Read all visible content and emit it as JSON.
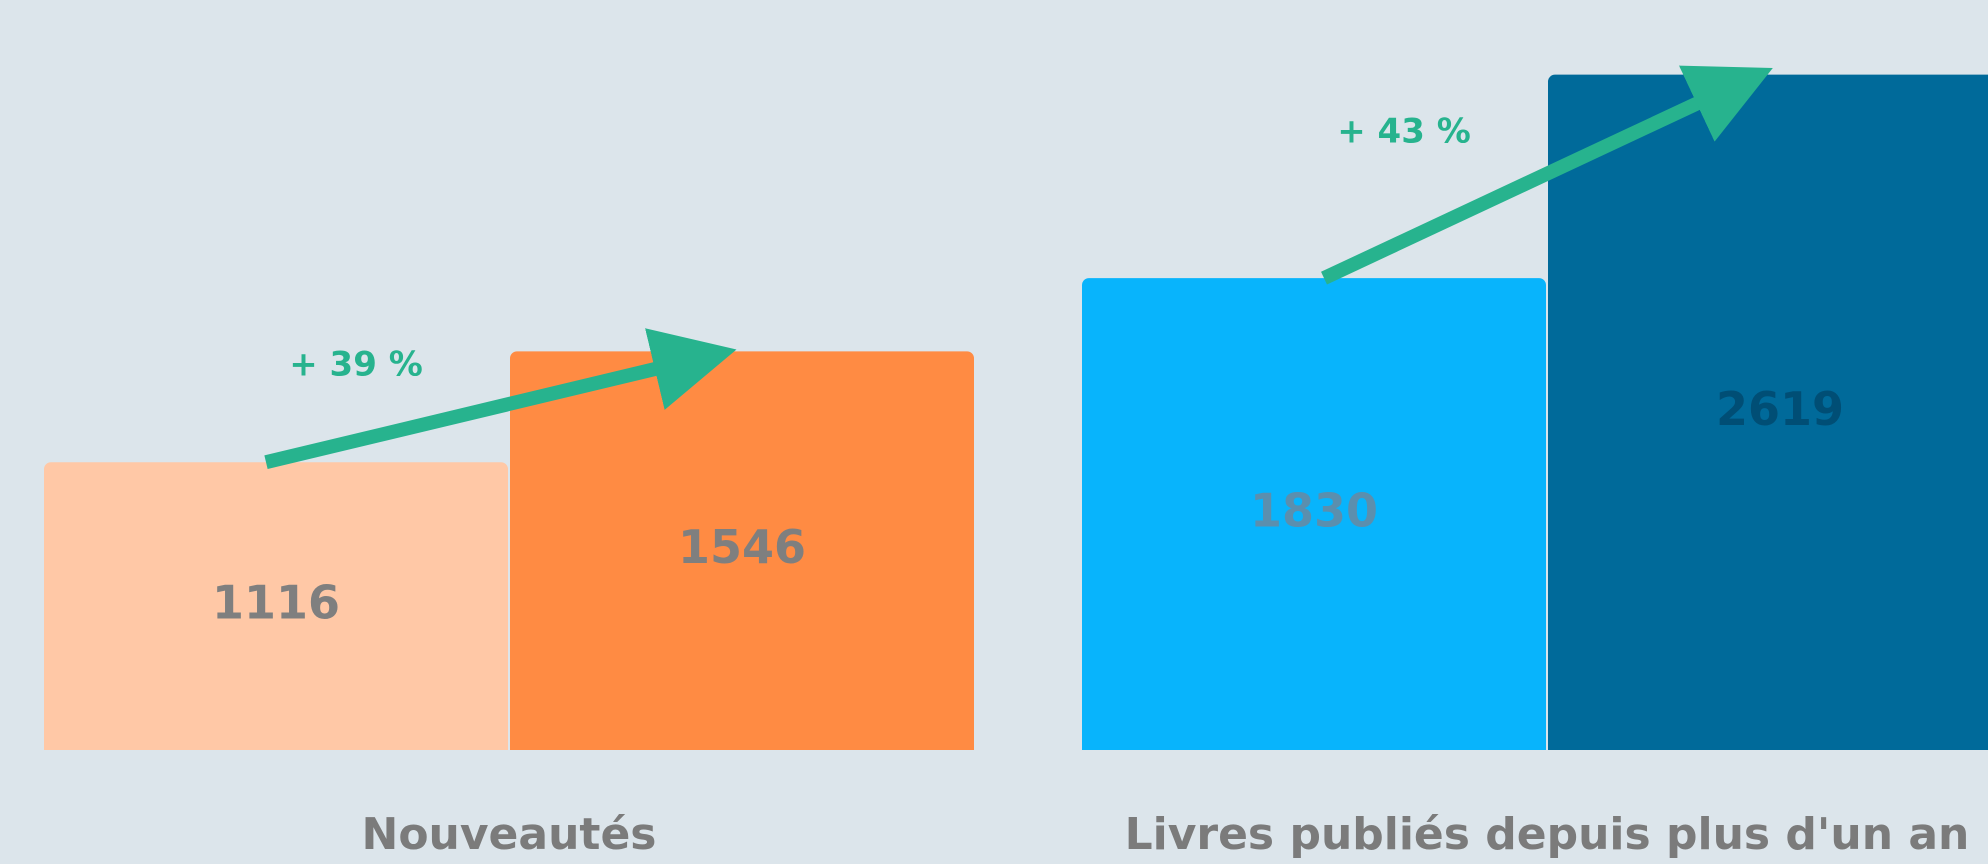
{
  "chart_data": {
    "type": "bar",
    "categories": [
      "Nouveautés",
      "Livres publiés depuis plus d'un an"
    ],
    "groups": [
      {
        "label": "Nouveautés",
        "values": [
          1116,
          1546
        ],
        "value_labels": [
          "1116",
          "1546"
        ],
        "colors": [
          "#ffc8a6",
          "#ff8b43"
        ],
        "value_text_colors": [
          "#7f7f7f",
          "#7f7f7f"
        ],
        "change_label": "+ 39 %"
      },
      {
        "label": "Livres publiés depuis plus d'un an",
        "values": [
          1830,
          2619
        ],
        "value_labels": [
          "1830",
          "2619"
        ],
        "colors": [
          "#08b4fc",
          "#006a9a"
        ],
        "value_text_colors": [
          "#5b8fae",
          "#004e75"
        ],
        "change_label": "+ 43 %"
      }
    ],
    "ylim": [
      0,
      2800
    ],
    "grid": false,
    "legend": "none",
    "arrow_color": "#27b38e",
    "label_color": "#7b7b7b"
  }
}
